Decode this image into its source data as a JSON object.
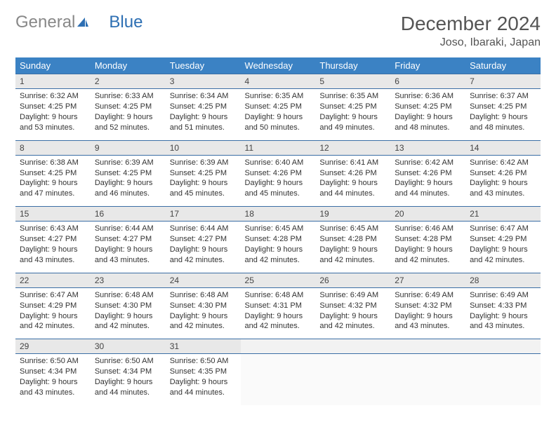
{
  "logo": {
    "text1": "General",
    "text2": "Blue",
    "text1_color": "#888888",
    "text2_color": "#2d6fb3",
    "icon_color": "#2d6fb3"
  },
  "title": "December 2024",
  "subtitle": "Joso, Ibaraki, Japan",
  "header_bg": "#3b82c4",
  "columns": [
    "Sunday",
    "Monday",
    "Tuesday",
    "Wednesday",
    "Thursday",
    "Friday",
    "Saturday"
  ],
  "weeks": [
    {
      "nums": [
        "1",
        "2",
        "3",
        "4",
        "5",
        "6",
        "7"
      ],
      "cells": [
        {
          "sunrise": "Sunrise: 6:32 AM",
          "sunset": "Sunset: 4:25 PM",
          "daylight": "Daylight: 9 hours and 53 minutes."
        },
        {
          "sunrise": "Sunrise: 6:33 AM",
          "sunset": "Sunset: 4:25 PM",
          "daylight": "Daylight: 9 hours and 52 minutes."
        },
        {
          "sunrise": "Sunrise: 6:34 AM",
          "sunset": "Sunset: 4:25 PM",
          "daylight": "Daylight: 9 hours and 51 minutes."
        },
        {
          "sunrise": "Sunrise: 6:35 AM",
          "sunset": "Sunset: 4:25 PM",
          "daylight": "Daylight: 9 hours and 50 minutes."
        },
        {
          "sunrise": "Sunrise: 6:35 AM",
          "sunset": "Sunset: 4:25 PM",
          "daylight": "Daylight: 9 hours and 49 minutes."
        },
        {
          "sunrise": "Sunrise: 6:36 AM",
          "sunset": "Sunset: 4:25 PM",
          "daylight": "Daylight: 9 hours and 48 minutes."
        },
        {
          "sunrise": "Sunrise: 6:37 AM",
          "sunset": "Sunset: 4:25 PM",
          "daylight": "Daylight: 9 hours and 48 minutes."
        }
      ]
    },
    {
      "nums": [
        "8",
        "9",
        "10",
        "11",
        "12",
        "13",
        "14"
      ],
      "cells": [
        {
          "sunrise": "Sunrise: 6:38 AM",
          "sunset": "Sunset: 4:25 PM",
          "daylight": "Daylight: 9 hours and 47 minutes."
        },
        {
          "sunrise": "Sunrise: 6:39 AM",
          "sunset": "Sunset: 4:25 PM",
          "daylight": "Daylight: 9 hours and 46 minutes."
        },
        {
          "sunrise": "Sunrise: 6:39 AM",
          "sunset": "Sunset: 4:25 PM",
          "daylight": "Daylight: 9 hours and 45 minutes."
        },
        {
          "sunrise": "Sunrise: 6:40 AM",
          "sunset": "Sunset: 4:26 PM",
          "daylight": "Daylight: 9 hours and 45 minutes."
        },
        {
          "sunrise": "Sunrise: 6:41 AM",
          "sunset": "Sunset: 4:26 PM",
          "daylight": "Daylight: 9 hours and 44 minutes."
        },
        {
          "sunrise": "Sunrise: 6:42 AM",
          "sunset": "Sunset: 4:26 PM",
          "daylight": "Daylight: 9 hours and 44 minutes."
        },
        {
          "sunrise": "Sunrise: 6:42 AM",
          "sunset": "Sunset: 4:26 PM",
          "daylight": "Daylight: 9 hours and 43 minutes."
        }
      ]
    },
    {
      "nums": [
        "15",
        "16",
        "17",
        "18",
        "19",
        "20",
        "21"
      ],
      "cells": [
        {
          "sunrise": "Sunrise: 6:43 AM",
          "sunset": "Sunset: 4:27 PM",
          "daylight": "Daylight: 9 hours and 43 minutes."
        },
        {
          "sunrise": "Sunrise: 6:44 AM",
          "sunset": "Sunset: 4:27 PM",
          "daylight": "Daylight: 9 hours and 43 minutes."
        },
        {
          "sunrise": "Sunrise: 6:44 AM",
          "sunset": "Sunset: 4:27 PM",
          "daylight": "Daylight: 9 hours and 42 minutes."
        },
        {
          "sunrise": "Sunrise: 6:45 AM",
          "sunset": "Sunset: 4:28 PM",
          "daylight": "Daylight: 9 hours and 42 minutes."
        },
        {
          "sunrise": "Sunrise: 6:45 AM",
          "sunset": "Sunset: 4:28 PM",
          "daylight": "Daylight: 9 hours and 42 minutes."
        },
        {
          "sunrise": "Sunrise: 6:46 AM",
          "sunset": "Sunset: 4:28 PM",
          "daylight": "Daylight: 9 hours and 42 minutes."
        },
        {
          "sunrise": "Sunrise: 6:47 AM",
          "sunset": "Sunset: 4:29 PM",
          "daylight": "Daylight: 9 hours and 42 minutes."
        }
      ]
    },
    {
      "nums": [
        "22",
        "23",
        "24",
        "25",
        "26",
        "27",
        "28"
      ],
      "cells": [
        {
          "sunrise": "Sunrise: 6:47 AM",
          "sunset": "Sunset: 4:29 PM",
          "daylight": "Daylight: 9 hours and 42 minutes."
        },
        {
          "sunrise": "Sunrise: 6:48 AM",
          "sunset": "Sunset: 4:30 PM",
          "daylight": "Daylight: 9 hours and 42 minutes."
        },
        {
          "sunrise": "Sunrise: 6:48 AM",
          "sunset": "Sunset: 4:30 PM",
          "daylight": "Daylight: 9 hours and 42 minutes."
        },
        {
          "sunrise": "Sunrise: 6:48 AM",
          "sunset": "Sunset: 4:31 PM",
          "daylight": "Daylight: 9 hours and 42 minutes."
        },
        {
          "sunrise": "Sunrise: 6:49 AM",
          "sunset": "Sunset: 4:32 PM",
          "daylight": "Daylight: 9 hours and 42 minutes."
        },
        {
          "sunrise": "Sunrise: 6:49 AM",
          "sunset": "Sunset: 4:32 PM",
          "daylight": "Daylight: 9 hours and 43 minutes."
        },
        {
          "sunrise": "Sunrise: 6:49 AM",
          "sunset": "Sunset: 4:33 PM",
          "daylight": "Daylight: 9 hours and 43 minutes."
        }
      ]
    },
    {
      "nums": [
        "29",
        "30",
        "31",
        "",
        "",
        "",
        ""
      ],
      "cells": [
        {
          "sunrise": "Sunrise: 6:50 AM",
          "sunset": "Sunset: 4:34 PM",
          "daylight": "Daylight: 9 hours and 43 minutes."
        },
        {
          "sunrise": "Sunrise: 6:50 AM",
          "sunset": "Sunset: 4:34 PM",
          "daylight": "Daylight: 9 hours and 44 minutes."
        },
        {
          "sunrise": "Sunrise: 6:50 AM",
          "sunset": "Sunset: 4:35 PM",
          "daylight": "Daylight: 9 hours and 44 minutes."
        },
        null,
        null,
        null,
        null
      ]
    }
  ]
}
